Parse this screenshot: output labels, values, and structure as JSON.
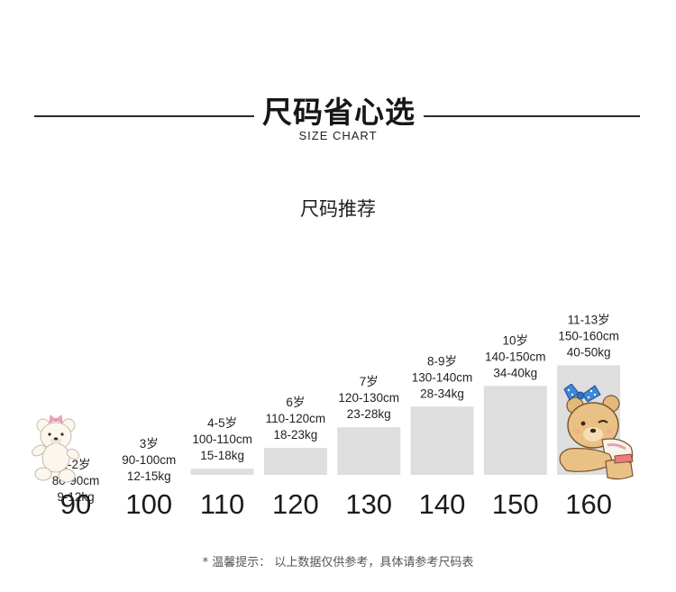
{
  "header": {
    "title": "尺码省心选",
    "subtitle": "SIZE CHART"
  },
  "recommend_title": "尺码推荐",
  "chart_data": {
    "type": "bar",
    "title": "尺码推荐",
    "categories": [
      "90",
      "100",
      "110",
      "120",
      "130",
      "140",
      "150",
      "160"
    ],
    "values": [
      90,
      100,
      110,
      120,
      130,
      140,
      150,
      160
    ],
    "labels": [
      [
        "1-2岁",
        "80-90cm",
        "9-12kg"
      ],
      [
        "3岁",
        "90-100cm",
        "12-15kg"
      ],
      [
        "4-5岁",
        "100-110cm",
        "15-18kg"
      ],
      [
        "6岁",
        "110-120cm",
        "18-23kg"
      ],
      [
        "7岁",
        "120-130cm",
        "23-28kg"
      ],
      [
        "8-9岁",
        "130-140cm",
        "28-34kg"
      ],
      [
        "10岁",
        "140-150cm",
        "34-40kg"
      ],
      [
        "11-13岁",
        "150-160cm",
        "40-50kg"
      ]
    ],
    "ylim": [
      0,
      160
    ],
    "grid": false
  },
  "footnote": "* 温馨提示： 以上数据仅供参考，具体请参考尺码表",
  "colors": {
    "bar": "#dedede",
    "text": "#1f1f1f",
    "line": "#2a2a2a"
  },
  "decorations": [
    "white-teddy-bear-icon",
    "teddy-bear-with-bow-icon"
  ]
}
